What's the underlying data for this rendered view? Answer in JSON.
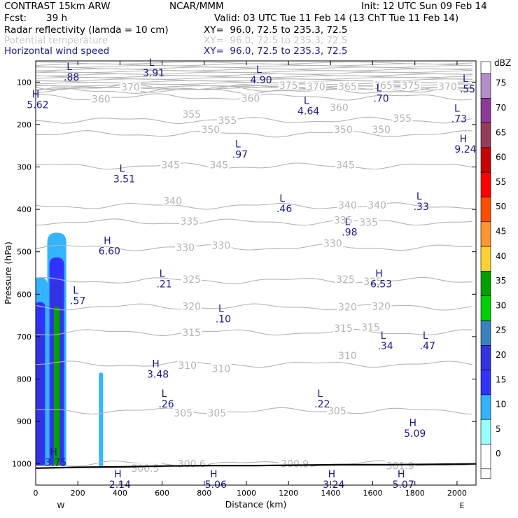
{
  "header": {
    "model": "CONTRAST 15km ARW",
    "center": "NCAR/MMM",
    "init": "Init: 12 UTC Sun 09 Feb 14",
    "fcst_label": "Fcst:",
    "fcst_value": "39 h",
    "valid": "Valid: 03 UTC Tue 11 Feb 14 (13 ChT Tue 11 Feb 14)"
  },
  "fields": [
    {
      "name": "Radar reflectivity (lamda = 10 cm)",
      "xy": "XY=  96.0, 72.5 to 235.3, 72.5",
      "color": "#000000"
    },
    {
      "name": "Potential temperature",
      "xy": "XY=  96.0, 72.5 to 235.3, 72.5",
      "color": "#c8c8c8"
    },
    {
      "name": "Horizontal wind speed",
      "xy": "XY=  96.0, 72.5 to 235.3, 72.5",
      "color": "#1a1a8c"
    }
  ],
  "chart_data": {
    "type": "cross-section",
    "xlabel": "Distance (km)",
    "ylabel": "Pressure (hPa)",
    "xlim": [
      0,
      2090
    ],
    "ylim": [
      1050,
      50
    ],
    "x_ticks": [
      0,
      200,
      400,
      600,
      800,
      1000,
      1200,
      1400,
      1600,
      1800,
      2000
    ],
    "y_ticks": [
      100,
      200,
      300,
      400,
      500,
      600,
      700,
      800,
      900,
      1000
    ],
    "x_endpoints": {
      "left": "W",
      "right": "E"
    },
    "colorbar": {
      "unit": "dBZ",
      "levels": [
        "75",
        "70",
        "65",
        "60",
        "55",
        "50",
        "45",
        "40",
        "35",
        "30",
        "25",
        "20",
        "15",
        "10",
        "5",
        "0"
      ],
      "colors": [
        "#b48cc8",
        "#8c3c96",
        "#963c5a",
        "#c80000",
        "#ff0000",
        "#ff5000",
        "#ff9632",
        "#ffd232",
        "#00a000",
        "#00d000",
        "#3c80c0",
        "#3232e0",
        "#3232ff",
        "#32b4ff",
        "#96ffff",
        "#ffffff"
      ]
    },
    "theta_contours": [
      {
        "label": "375",
        "p": 112
      },
      {
        "label": "370",
        "p": 117
      },
      {
        "label": "365",
        "p": 120
      },
      {
        "label": "360",
        "p": 135
      },
      {
        "label": "355",
        "p": 190
      },
      {
        "label": "350",
        "p": 222
      },
      {
        "label": "345",
        "p": 298
      },
      {
        "label": "340",
        "p": 392
      },
      {
        "label": "335",
        "p": 430
      },
      {
        "label": "330",
        "p": 490
      },
      {
        "label": "325",
        "p": 568
      },
      {
        "label": "320",
        "p": 630
      },
      {
        "label": "315",
        "p": 690
      },
      {
        "label": "310",
        "p": 765
      },
      {
        "label": "305",
        "p": 875
      },
      {
        "label": "300",
        "p": 1000
      }
    ],
    "theta_labels": [
      {
        "text": "370",
        "x": 450,
        "p": 112
      },
      {
        "text": "375",
        "x": 1200,
        "p": 108
      },
      {
        "text": "370",
        "x": 1330,
        "p": 110
      },
      {
        "text": "365",
        "x": 1480,
        "p": 110
      },
      {
        "text": "365",
        "x": 1650,
        "p": 108
      },
      {
        "text": "375",
        "x": 1780,
        "p": 108
      },
      {
        "text": "370",
        "x": 1955,
        "p": 110
      },
      {
        "text": "360",
        "x": 310,
        "p": 140
      },
      {
        "text": "360",
        "x": 1020,
        "p": 138
      },
      {
        "text": "360",
        "x": 1440,
        "p": 160
      },
      {
        "text": "355",
        "x": 740,
        "p": 175
      },
      {
        "text": "355",
        "x": 910,
        "p": 190
      },
      {
        "text": "355",
        "x": 1740,
        "p": 185
      },
      {
        "text": "350",
        "x": 830,
        "p": 212
      },
      {
        "text": "350",
        "x": 1460,
        "p": 212
      },
      {
        "text": "350",
        "x": 1640,
        "p": 212
      },
      {
        "text": "345",
        "x": 640,
        "p": 295
      },
      {
        "text": "345",
        "x": 870,
        "p": 295
      },
      {
        "text": "345",
        "x": 1470,
        "p": 295
      },
      {
        "text": "340",
        "x": 650,
        "p": 380
      },
      {
        "text": "340",
        "x": 1480,
        "p": 390
      },
      {
        "text": "340",
        "x": 1620,
        "p": 390
      },
      {
        "text": "335",
        "x": 730,
        "p": 428
      },
      {
        "text": "335",
        "x": 1460,
        "p": 425
      },
      {
        "text": "335",
        "x": 1580,
        "p": 430
      },
      {
        "text": "330",
        "x": 710,
        "p": 490
      },
      {
        "text": "330",
        "x": 880,
        "p": 485
      },
      {
        "text": "330",
        "x": 1410,
        "p": 480
      },
      {
        "text": "325",
        "x": 740,
        "p": 565
      },
      {
        "text": "325",
        "x": 1470,
        "p": 565
      },
      {
        "text": "325",
        "x": 1600,
        "p": 570
      },
      {
        "text": "320",
        "x": 740,
        "p": 628
      },
      {
        "text": "320",
        "x": 1480,
        "p": 630
      },
      {
        "text": "320",
        "x": 1640,
        "p": 628
      },
      {
        "text": "315",
        "x": 740,
        "p": 690
      },
      {
        "text": "315",
        "x": 1460,
        "p": 680
      },
      {
        "text": "315",
        "x": 1590,
        "p": 678
      },
      {
        "text": "310",
        "x": 720,
        "p": 768
      },
      {
        "text": "310",
        "x": 880,
        "p": 775
      },
      {
        "text": "310",
        "x": 1480,
        "p": 745
      },
      {
        "text": "305",
        "x": 700,
        "p": 880
      },
      {
        "text": "305",
        "x": 860,
        "p": 880
      },
      {
        "text": "305",
        "x": 1430,
        "p": 875
      },
      {
        "text": "300.5",
        "x": 520,
        "p": 1010
      },
      {
        "text": "300.6",
        "x": 740,
        "p": 1000
      },
      {
        "text": "300.9",
        "x": 1230,
        "p": 1000
      },
      {
        "text": "301.9",
        "x": 1730,
        "p": 1005
      }
    ],
    "wind_markers": [
      {
        "type": "L",
        "value": ".88",
        "x": 170,
        "p": 80
      },
      {
        "type": "L",
        "value": "3.91",
        "x": 560,
        "p": 70
      },
      {
        "type": "L",
        "value": "4.90",
        "x": 1070,
        "p": 86
      },
      {
        "type": "L",
        "value": ".55",
        "x": 2050,
        "p": 108
      },
      {
        "type": "H",
        "value": "5.62",
        "x": 10,
        "p": 145
      },
      {
        "type": "L",
        "value": ".70",
        "x": 1640,
        "p": 130
      },
      {
        "type": "L",
        "value": "4.64",
        "x": 1295,
        "p": 160
      },
      {
        "type": "L",
        "value": ".73",
        "x": 2010,
        "p": 178
      },
      {
        "type": "H",
        "value": "9.24",
        "x": 2040,
        "p": 250
      },
      {
        "type": "L",
        "value": ".97",
        "x": 970,
        "p": 262
      },
      {
        "type": "L",
        "value": "3.51",
        "x": 420,
        "p": 320
      },
      {
        "type": "L",
        "value": ".46",
        "x": 1180,
        "p": 390
      },
      {
        "type": "L",
        "value": ".33",
        "x": 1830,
        "p": 385
      },
      {
        "type": "L",
        "value": ".98",
        "x": 1490,
        "p": 445
      },
      {
        "type": "H",
        "value": "6.60",
        "x": 350,
        "p": 490
      },
      {
        "type": "L",
        "value": ".21",
        "x": 610,
        "p": 567
      },
      {
        "type": "H",
        "value": "6.53",
        "x": 1640,
        "p": 567
      },
      {
        "type": "L",
        "value": ".57",
        "x": 200,
        "p": 607
      },
      {
        "type": "L",
        "value": ".10",
        "x": 890,
        "p": 650
      },
      {
        "type": "L",
        "value": ".34",
        "x": 1660,
        "p": 713
      },
      {
        "type": "L",
        "value": ".47",
        "x": 1860,
        "p": 713
      },
      {
        "type": "H",
        "value": "3.48",
        "x": 580,
        "p": 780
      },
      {
        "type": "L",
        "value": ".26",
        "x": 620,
        "p": 850
      },
      {
        "type": "L",
        "value": ".22",
        "x": 1360,
        "p": 850
      },
      {
        "type": "H",
        "value": "5.09",
        "x": 1800,
        "p": 920
      },
      {
        "type": "H",
        "value": "3.75",
        "x": 95,
        "p": 988
      },
      {
        "type": "H",
        "value": "2.14",
        "x": 400,
        "p": 1040
      },
      {
        "type": "H",
        "value": "5.06",
        "x": 855,
        "p": 1040
      },
      {
        "type": "H",
        "value": "3.24",
        "x": 1415,
        "p": 1040
      },
      {
        "type": "H",
        "value": "5.07",
        "x": 1745,
        "p": 1040
      }
    ],
    "reflectivity_cores": [
      {
        "x_center": 100,
        "half_width": 45,
        "top_p": 455,
        "dbz_levels": [
          "10",
          "15",
          "20",
          "35"
        ]
      },
      {
        "x_center": 20,
        "half_width": 35,
        "top_p": 560,
        "dbz_levels": [
          "10",
          "15",
          "20"
        ]
      },
      {
        "x_center": 310,
        "half_width": 10,
        "top_p": 785,
        "dbz_levels": [
          "10"
        ]
      }
    ],
    "terrain_p": [
      1010,
      1008,
      1007,
      1005,
      1004,
      1004,
      1003,
      1002,
      1002,
      1001,
      1000
    ]
  }
}
